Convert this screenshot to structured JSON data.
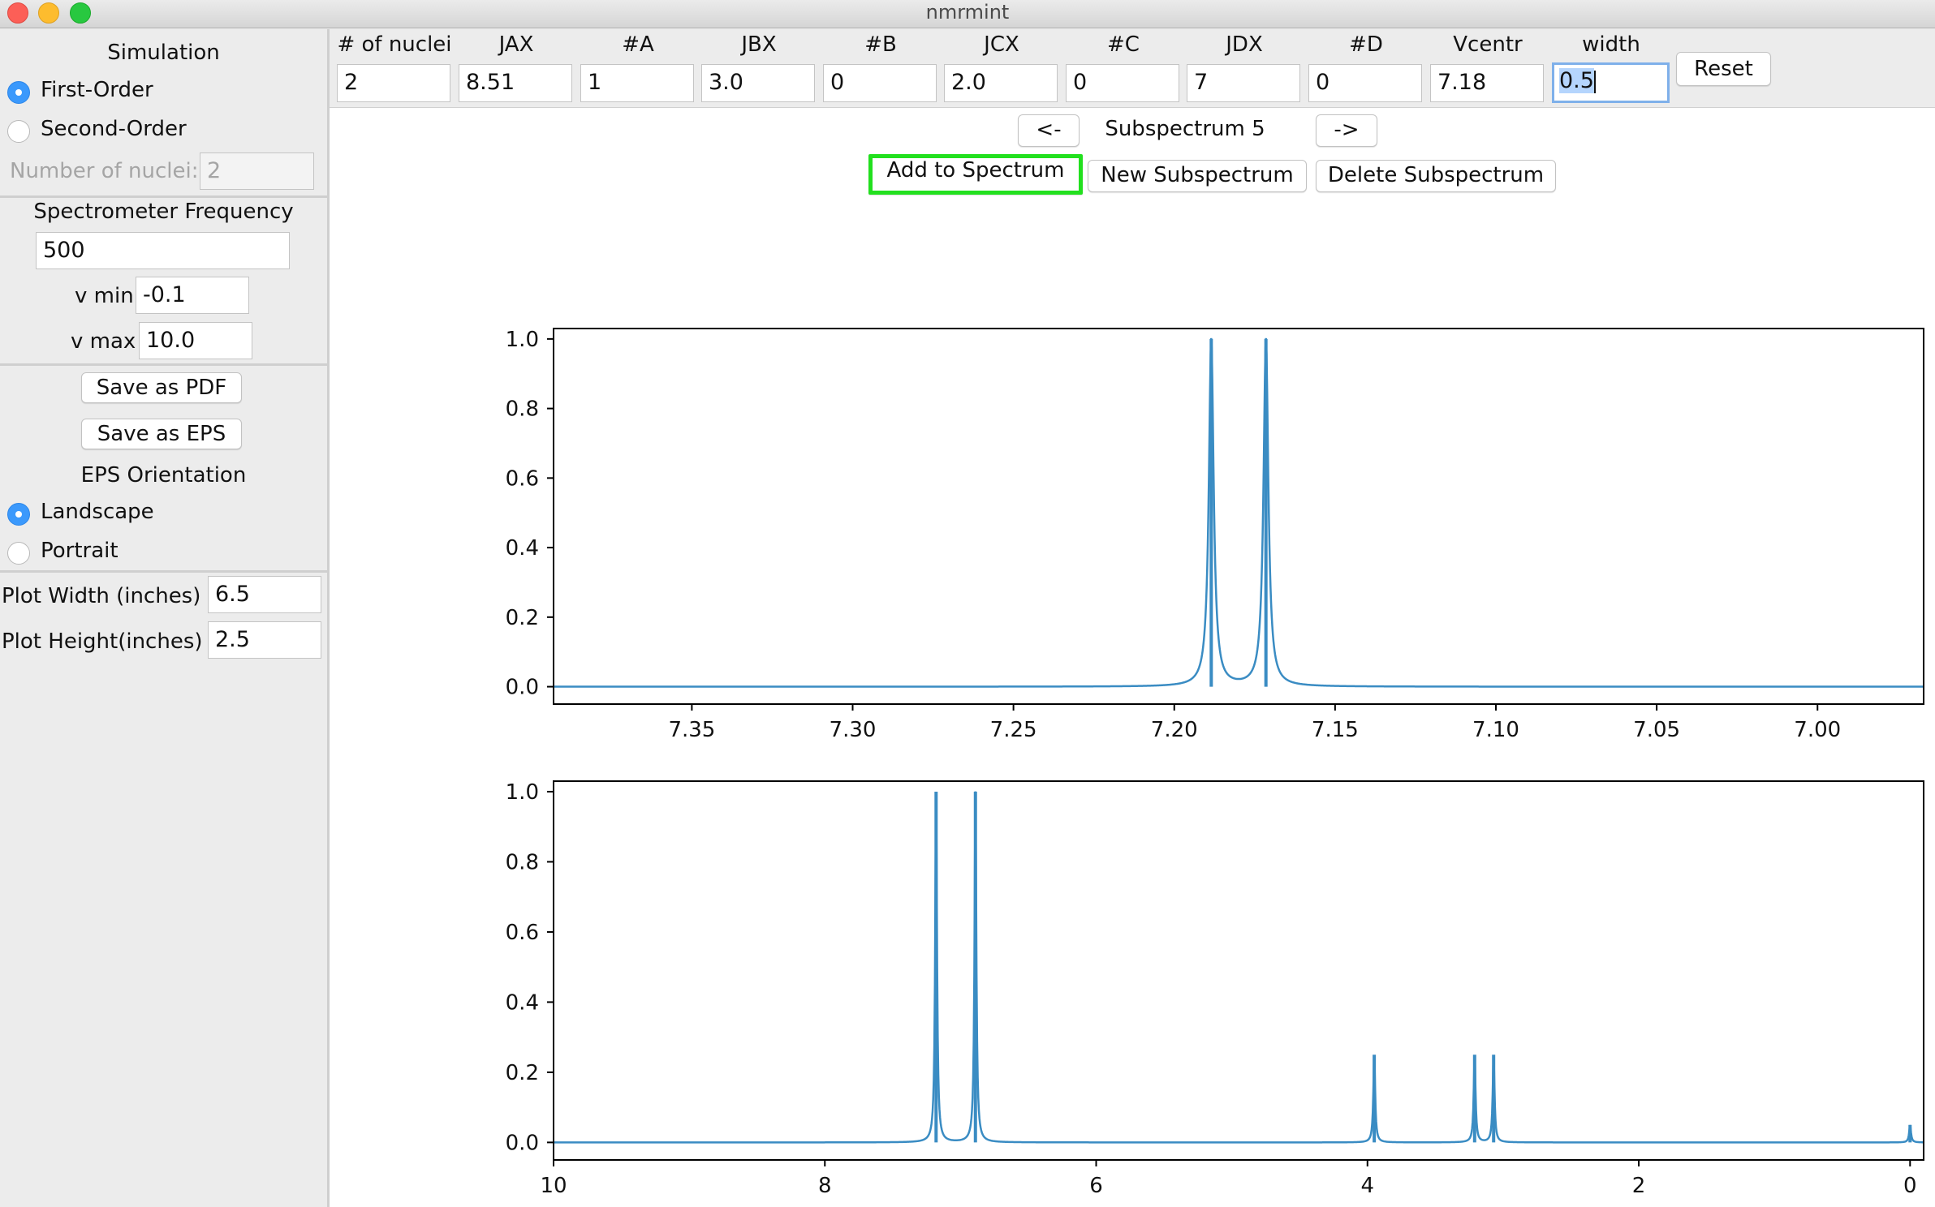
{
  "window": {
    "title": "nmrmint"
  },
  "sidebar": {
    "simulation_label": "Simulation",
    "first_order_label": "First-Order",
    "second_order_label": "Second-Order",
    "simulation_mode": "First-Order",
    "nuclei_label": "Number of nuclei:",
    "nuclei_value": "2",
    "spec_freq_label": "Spectrometer Frequency",
    "spec_freq_value": "500",
    "vmin_label": "v min",
    "vmin_value": "-0.1",
    "vmax_label": "v max",
    "vmax_value": "10.0",
    "save_pdf_label": "Save as PDF",
    "save_eps_label": "Save as EPS",
    "eps_orientation_label": "EPS Orientation",
    "landscape_label": "Landscape",
    "portrait_label": "Portrait",
    "eps_orientation": "Landscape",
    "plot_width_label": "Plot Width (inches)",
    "plot_width_value": "6.5",
    "plot_height_label": "Plot Height(inches)",
    "plot_height_value": "2.5"
  },
  "params": {
    "headers": [
      "# of nuclei",
      "JAX",
      "#A",
      "JBX",
      "#B",
      "JCX",
      "#C",
      "JDX",
      "#D",
      "Vcentr",
      "width"
    ],
    "values": [
      "2",
      "8.51",
      "1",
      "3.0",
      "0",
      "2.0",
      "0",
      "7",
      "0",
      "7.18",
      "0.5"
    ],
    "reset_label": "Reset"
  },
  "nav": {
    "prev_label": "<-",
    "next_label": "->",
    "subspectrum_label": "Subspectrum 5",
    "add_label": "Add to Spectrum",
    "new_label": "New Subspectrum",
    "delete_label": "Delete Subspectrum"
  },
  "colors": {
    "line": "#3a8cc3",
    "highlight": "#22e01e",
    "radio": "#3b99fc"
  },
  "chart_data": [
    {
      "type": "line",
      "title": "",
      "xlabel": "",
      "ylabel": "",
      "xlim": [
        7.393,
        6.967
      ],
      "ylim": [
        -0.05,
        1.03
      ],
      "xticks": [
        7.35,
        7.3,
        7.25,
        7.2,
        7.15,
        7.1,
        7.05,
        7.0
      ],
      "xtick_labels": [
        "7.35",
        "7.30",
        "7.25",
        "7.20",
        "7.15",
        "7.10",
        "7.05",
        "7.00"
      ],
      "yticks": [
        0.0,
        0.2,
        0.4,
        0.6,
        0.8,
        1.0
      ],
      "ytick_labels": [
        "0.0",
        "0.2",
        "0.4",
        "0.6",
        "0.8",
        "1.0"
      ],
      "series": [
        {
          "peaks": [
            {
              "x": 7.1885,
              "y": 1.0
            },
            {
              "x": 7.1715,
              "y": 1.0
            }
          ],
          "width": 0.0009
        }
      ]
    },
    {
      "type": "line",
      "title": "",
      "xlabel": "",
      "ylabel": "",
      "xlim": [
        10.0,
        -0.1
      ],
      "ylim": [
        -0.05,
        1.03
      ],
      "xticks": [
        10,
        8,
        6,
        4,
        2,
        0
      ],
      "xtick_labels": [
        "10",
        "8",
        "6",
        "4",
        "2",
        "0"
      ],
      "yticks": [
        0.0,
        0.2,
        0.4,
        0.6,
        0.8,
        1.0
      ],
      "ytick_labels": [
        "0.0",
        "0.2",
        "0.4",
        "0.6",
        "0.8",
        "1.0"
      ],
      "series": [
        {
          "peaks": [
            {
              "x": 7.18,
              "y": 1.0
            },
            {
              "x": 6.89,
              "y": 1.0
            },
            {
              "x": 3.95,
              "y": 0.25
            },
            {
              "x": 3.21,
              "y": 0.25
            },
            {
              "x": 3.07,
              "y": 0.25
            },
            {
              "x": 0.0,
              "y": 0.05
            }
          ],
          "width": 0.008
        }
      ]
    }
  ]
}
